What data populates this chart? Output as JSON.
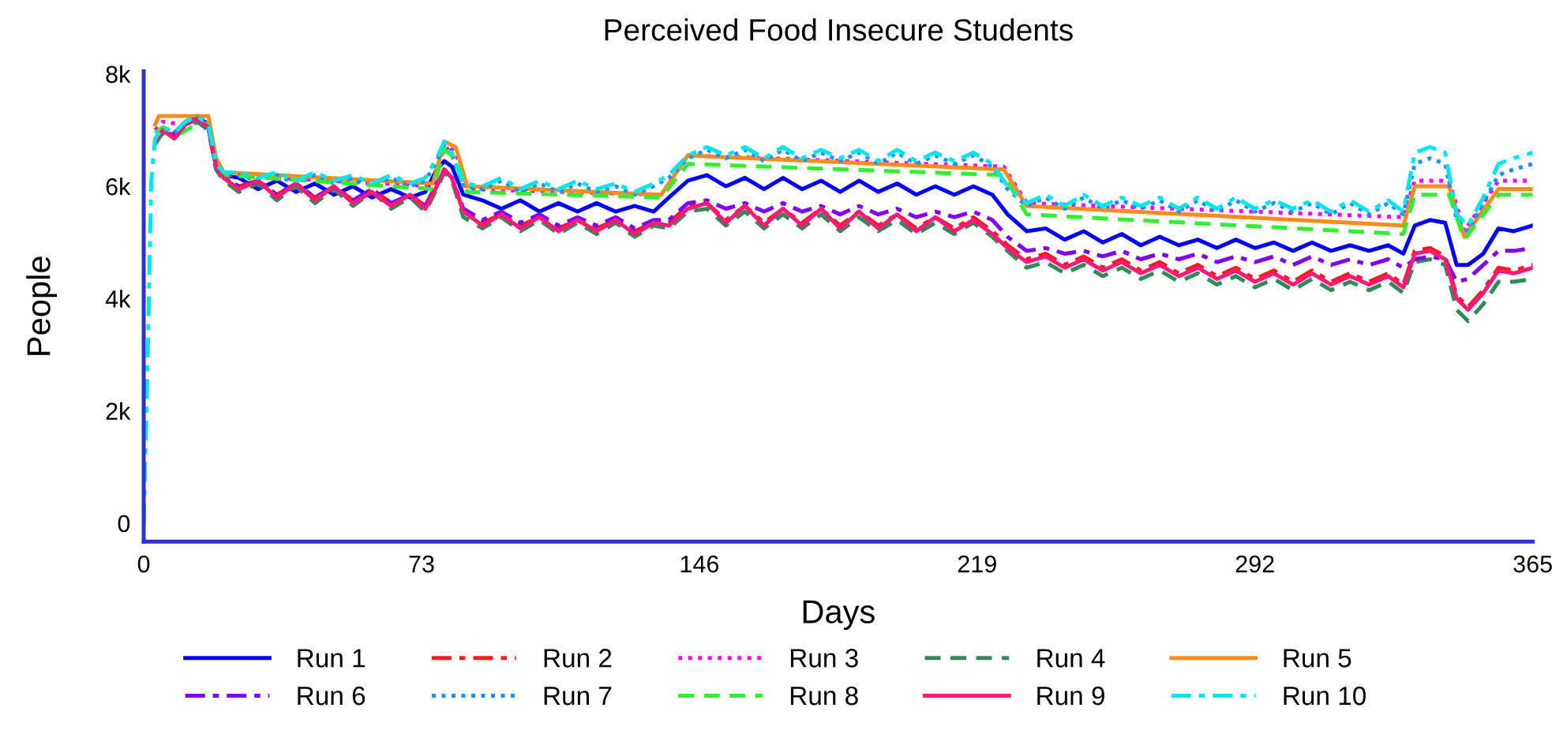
{
  "chart_data": {
    "type": "line",
    "title": "Perceived Food Insecure Students",
    "xlabel": "Days",
    "ylabel": "People",
    "x": [
      0,
      1,
      2,
      3,
      5,
      8,
      11,
      14,
      17,
      19,
      21,
      25,
      30,
      35,
      40,
      45,
      50,
      55,
      60,
      65,
      70,
      74,
      77,
      79,
      81,
      84,
      89,
      94,
      99,
      104,
      109,
      114,
      119,
      124,
      129,
      134,
      138,
      143,
      148,
      153,
      158,
      163,
      168,
      173,
      178,
      183,
      188,
      193,
      198,
      203,
      208,
      213,
      218,
      223,
      227,
      232,
      237,
      242,
      247,
      252,
      257,
      262,
      267,
      272,
      277,
      282,
      287,
      292,
      297,
      302,
      307,
      312,
      317,
      322,
      327,
      331,
      334,
      338,
      342,
      345,
      348,
      352,
      356,
      360,
      365
    ],
    "xlim": [
      0,
      365
    ],
    "xticks": [
      0,
      73,
      146,
      219,
      292,
      365
    ],
    "ylim": [
      -330,
      8050
    ],
    "yticks": [
      0,
      {
        "value": 2000,
        "label": "2k"
      },
      {
        "value": 4000,
        "label": "4k"
      },
      {
        "value": 6000,
        "label": "6k"
      },
      {
        "value": 8000,
        "label": "8k"
      }
    ],
    "grid": false,
    "legend": "bottom",
    "marker": "none",
    "series": [
      {
        "name": "Run 1",
        "color": "#0000ff",
        "line_style": "solid",
        "values": [
          null,
          null,
          null,
          null,
          null,
          6950,
          7150,
          7250,
          7100,
          6400,
          6200,
          6150,
          5950,
          6100,
          5900,
          6050,
          5850,
          6000,
          5800,
          5950,
          5800,
          5900,
          6300,
          6450,
          6350,
          5850,
          5750,
          5600,
          5750,
          5550,
          5700,
          5550,
          5700,
          5550,
          5650,
          5550,
          5800,
          6100,
          6200,
          6000,
          6150,
          5950,
          6150,
          5950,
          6100,
          5900,
          6100,
          5900,
          6050,
          5850,
          6000,
          5850,
          6000,
          5850,
          5500,
          5200,
          5250,
          5050,
          5200,
          5000,
          5150,
          4950,
          5100,
          4950,
          5050,
          4900,
          5050,
          4900,
          5000,
          4850,
          5000,
          4850,
          4950,
          4850,
          4950,
          4800,
          5300,
          5400,
          5350,
          4600,
          4600,
          4800,
          5250,
          5200,
          5300
        ]
      },
      {
        "name": "Run 2",
        "color": "#ff1a1a",
        "line_style": "dashdot",
        "values": [
          null,
          null,
          null,
          null,
          7000,
          6900,
          7100,
          7200,
          7050,
          6350,
          6150,
          6000,
          6100,
          5850,
          6050,
          5800,
          6000,
          5750,
          5950,
          5700,
          5850,
          5650,
          6000,
          6300,
          6150,
          5550,
          5350,
          5500,
          5300,
          5450,
          5250,
          5400,
          5250,
          5400,
          5200,
          5350,
          5350,
          5650,
          5700,
          5400,
          5650,
          5350,
          5600,
          5350,
          5600,
          5300,
          5550,
          5300,
          5500,
          5250,
          5450,
          5250,
          5450,
          5200,
          4950,
          4700,
          4800,
          4600,
          4750,
          4550,
          4700,
          4500,
          4650,
          4450,
          4600,
          4400,
          4550,
          4350,
          4500,
          4300,
          4500,
          4300,
          4450,
          4300,
          4450,
          4250,
          4850,
          4900,
          4750,
          4050,
          3850,
          4150,
          4550,
          4500,
          4600
        ]
      },
      {
        "name": "Run 3",
        "color": "#ff00ff",
        "line_style": "dotted",
        "x": [
          3,
          5,
          10,
          15,
          17,
          19,
          21,
          76,
          79,
          82,
          85,
          136,
          143,
          226,
          232,
          331,
          334,
          343,
          347,
          356,
          365
        ],
        "values": [
          7000,
          7150,
          7100,
          7200,
          7150,
          6500,
          6200,
          6000,
          6750,
          6600,
          5950,
          5850,
          6550,
          6350,
          5700,
          5450,
          6100,
          6100,
          5200,
          6100,
          6100
        ]
      },
      {
        "name": "Run 4",
        "color": "#2e8b57",
        "line_style": "dashed",
        "values": [
          null,
          null,
          null,
          6750,
          6950,
          6850,
          7050,
          7150,
          7000,
          6300,
          6100,
          5900,
          6050,
          5750,
          6000,
          5700,
          5950,
          5650,
          5900,
          5600,
          5800,
          5550,
          5950,
          6250,
          6100,
          5450,
          5250,
          5450,
          5200,
          5400,
          5150,
          5350,
          5150,
          5350,
          5100,
          5300,
          5250,
          5550,
          5600,
          5300,
          5550,
          5250,
          5500,
          5250,
          5500,
          5200,
          5450,
          5200,
          5400,
          5150,
          5350,
          5150,
          5350,
          5100,
          4850,
          4550,
          4650,
          4450,
          4600,
          4400,
          4550,
          4350,
          4500,
          4300,
          4450,
          4250,
          4400,
          4200,
          4350,
          4150,
          4350,
          4150,
          4300,
          4150,
          4300,
          4100,
          4650,
          4700,
          4600,
          3800,
          3600,
          3900,
          4300,
          4300,
          4350
        ]
      },
      {
        "name": "Run 5",
        "color": "#ff8c1a",
        "line_style": "solid",
        "x": [
          3,
          4,
          17,
          19,
          21,
          76,
          79,
          82,
          85,
          136,
          143,
          226,
          232,
          331,
          334,
          343,
          347,
          356,
          365
        ],
        "values": [
          7100,
          7250,
          7250,
          6500,
          6250,
          6050,
          6800,
          6700,
          6000,
          5850,
          6550,
          6300,
          5650,
          5300,
          6000,
          6000,
          5100,
          5950,
          5950
        ]
      },
      {
        "name": "Run 6",
        "color": "#8000ff",
        "line_style": "dashdot",
        "values": [
          null,
          null,
          null,
          null,
          null,
          6900,
          7150,
          7200,
          7050,
          6350,
          6150,
          6000,
          6100,
          5850,
          6050,
          5800,
          6000,
          5750,
          5950,
          5700,
          5850,
          5650,
          6050,
          6300,
          6150,
          5600,
          5400,
          5550,
          5350,
          5500,
          5300,
          5450,
          5300,
          5450,
          5250,
          5400,
          5400,
          5700,
          5750,
          5600,
          5700,
          5550,
          5700,
          5550,
          5650,
          5500,
          5650,
          5500,
          5600,
          5450,
          5550,
          5450,
          5550,
          5400,
          5100,
          4850,
          4900,
          4800,
          4850,
          4750,
          4850,
          4700,
          4800,
          4700,
          4800,
          4650,
          4750,
          4650,
          4750,
          4600,
          4750,
          4600,
          4700,
          4600,
          4700,
          4550,
          4700,
          4750,
          4700,
          4300,
          4350,
          4600,
          4850,
          4850,
          4900
        ]
      },
      {
        "name": "Run 7",
        "color": "#1e90ff",
        "line_style": "dotted",
        "values": [
          null,
          null,
          null,
          null,
          null,
          6950,
          7150,
          7250,
          7100,
          6400,
          6250,
          6200,
          6100,
          6200,
          6050,
          6200,
          6050,
          6150,
          6000,
          6150,
          6000,
          6100,
          6450,
          6750,
          6550,
          6000,
          5950,
          6100,
          5900,
          6050,
          5900,
          6050,
          5900,
          6000,
          5850,
          6000,
          6150,
          6500,
          6650,
          6500,
          6650,
          6450,
          6650,
          6450,
          6600,
          6450,
          6600,
          6400,
          6600,
          6400,
          6550,
          6400,
          6550,
          6350,
          5950,
          5650,
          5800,
          5600,
          5800,
          5600,
          5750,
          5600,
          5750,
          5550,
          5750,
          5550,
          5750,
          5550,
          5700,
          5550,
          5700,
          5500,
          5700,
          5500,
          5700,
          5500,
          6400,
          6500,
          6400,
          5400,
          5200,
          5700,
          6200,
          6300,
          6400
        ]
      },
      {
        "name": "Run 8",
        "color": "#33ee33",
        "line_style": "dashed",
        "x": [
          3,
          5,
          10,
          15,
          17,
          19,
          21,
          76,
          79,
          82,
          85,
          136,
          143,
          226,
          232,
          331,
          334,
          343,
          347,
          356,
          365
        ],
        "values": [
          6950,
          7050,
          6950,
          7150,
          7100,
          6450,
          6200,
          5950,
          6650,
          6500,
          5900,
          5800,
          6400,
          6200,
          5500,
          5150,
          5850,
          5850,
          5050,
          5850,
          5850
        ]
      },
      {
        "name": "Run 9",
        "color": "#ff1a75",
        "line_style": "solid",
        "values": [
          null,
          null,
          null,
          6800,
          7000,
          6850,
          7100,
          7200,
          7050,
          6350,
          6150,
          5950,
          6100,
          5800,
          6050,
          5750,
          6000,
          5700,
          5900,
          5650,
          5850,
          5600,
          6000,
          6300,
          6150,
          5550,
          5300,
          5500,
          5250,
          5450,
          5200,
          5400,
          5200,
          5400,
          5150,
          5350,
          5300,
          5600,
          5700,
          5350,
          5650,
          5300,
          5600,
          5300,
          5600,
          5250,
          5550,
          5250,
          5500,
          5200,
          5450,
          5200,
          5400,
          5150,
          4900,
          4650,
          4750,
          4550,
          4700,
          4500,
          4650,
          4450,
          4600,
          4400,
          4550,
          4350,
          4500,
          4300,
          4450,
          4250,
          4450,
          4250,
          4400,
          4250,
          4400,
          4200,
          4800,
          4850,
          4700,
          4000,
          3800,
          4100,
          4500,
          4450,
          4550
        ]
      },
      {
        "name": "Run 10",
        "color": "#00e5ee",
        "line_style": "dashdot",
        "values": [
          0,
          2800,
          6100,
          6850,
          7050,
          6950,
          7150,
          7250,
          7100,
          6400,
          6250,
          6250,
          6150,
          6250,
          6100,
          6250,
          6100,
          6200,
          6050,
          6200,
          6050,
          6150,
          6500,
          6800,
          6600,
          6050,
          6000,
          6150,
          5950,
          6100,
          5950,
          6100,
          5950,
          6050,
          5900,
          6050,
          6200,
          6550,
          6700,
          6550,
          6700,
          6500,
          6700,
          6500,
          6650,
          6500,
          6650,
          6450,
          6650,
          6450,
          6600,
          6450,
          6600,
          6400,
          6000,
          5700,
          5850,
          5650,
          5850,
          5650,
          5800,
          5650,
          5800,
          5600,
          5800,
          5600,
          5800,
          5600,
          5750,
          5600,
          5750,
          5550,
          5750,
          5550,
          5750,
          5550,
          6600,
          6700,
          6600,
          5500,
          5300,
          5800,
          6400,
          6500,
          6600
        ]
      }
    ]
  }
}
